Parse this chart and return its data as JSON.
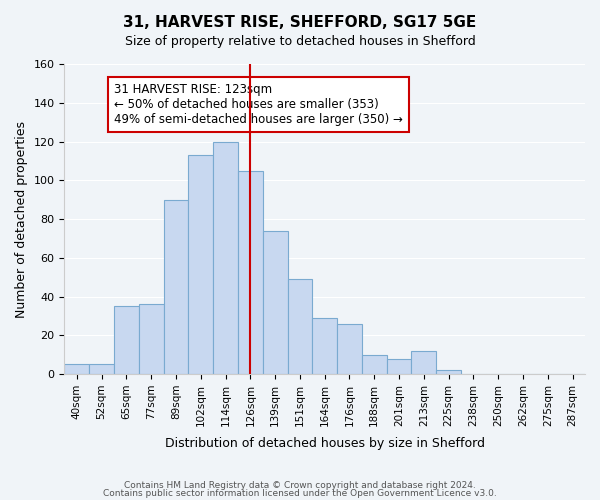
{
  "title": "31, HARVEST RISE, SHEFFORD, SG17 5GE",
  "subtitle": "Size of property relative to detached houses in Shefford",
  "xlabel": "Distribution of detached houses by size in Shefford",
  "ylabel": "Number of detached properties",
  "bar_color": "#c8d8f0",
  "bar_edge_color": "#7aaad0",
  "categories": [
    "40sqm",
    "52sqm",
    "65sqm",
    "77sqm",
    "89sqm",
    "102sqm",
    "114sqm",
    "126sqm",
    "139sqm",
    "151sqm",
    "164sqm",
    "176sqm",
    "188sqm",
    "201sqm",
    "213sqm",
    "225sqm",
    "238sqm",
    "250sqm",
    "262sqm",
    "275sqm",
    "287sqm"
  ],
  "values": [
    5,
    5,
    35,
    36,
    90,
    113,
    120,
    105,
    74,
    49,
    29,
    26,
    10,
    8,
    12,
    2,
    0,
    0,
    0,
    0,
    0
  ],
  "vline_x": 7,
  "vline_color": "#cc0000",
  "annotation_text": "31 HARVEST RISE: 123sqm\n← 50% of detached houses are smaller (353)\n49% of semi-detached houses are larger (350) →",
  "annotation_box_color": "#ffffff",
  "annotation_box_edge": "#cc0000",
  "ylim": [
    0,
    160
  ],
  "yticks": [
    0,
    20,
    40,
    60,
    80,
    100,
    120,
    140,
    160
  ],
  "footer1": "Contains HM Land Registry data © Crown copyright and database right 2024.",
  "footer2": "Contains public sector information licensed under the Open Government Licence v3.0.",
  "background_color": "#f0f4f8"
}
